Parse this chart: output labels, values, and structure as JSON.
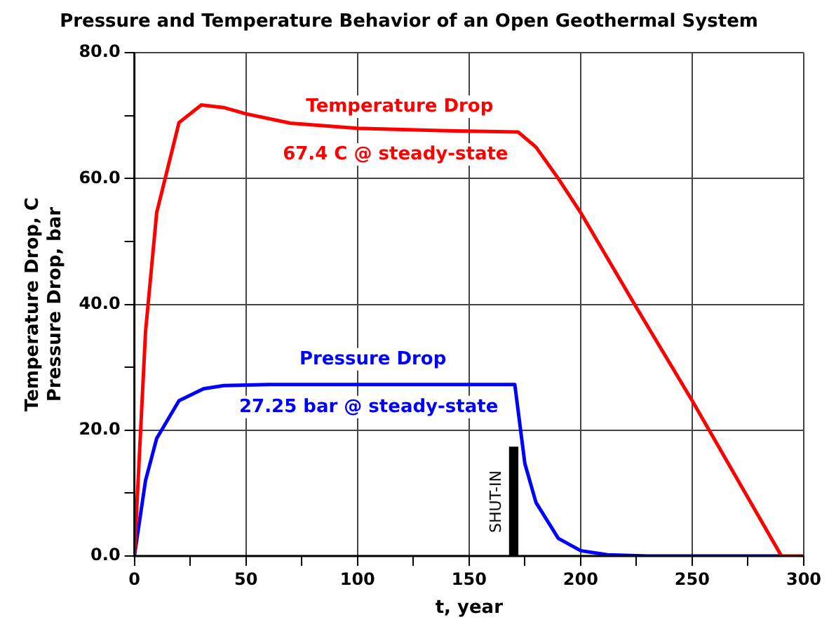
{
  "chart_data": {
    "type": "line",
    "title": "Pressure and Temperature Behavior of an Open Geothermal System",
    "xlabel": "t, year",
    "ylabel": "Temperature Drop, C\nPressure Drop, bar",
    "series": [
      {
        "name": "Temperature Drop",
        "color": "#ff0000",
        "x": [
          0,
          5,
          10,
          20,
          30,
          40,
          50,
          70,
          100,
          140,
          172,
          180,
          190,
          200,
          225,
          250,
          290,
          300
        ],
        "values": [
          0,
          35.7,
          54.6,
          68.9,
          71.7,
          71.3,
          70.3,
          68.8,
          68,
          67.6,
          67.4,
          65,
          60,
          54.6,
          39.5,
          24.7,
          0,
          0
        ]
      },
      {
        "name": "Pressure Drop",
        "color": "#0000ff",
        "x": [
          0,
          5,
          10,
          20,
          31,
          40,
          60,
          100,
          170.5,
          175,
          180,
          190,
          200,
          212,
          230,
          290
        ],
        "values": [
          0,
          12,
          18.7,
          24.7,
          26.6,
          27.1,
          27.25,
          27.25,
          27.25,
          14.7,
          8.5,
          2.8,
          0.85,
          0.2,
          0,
          0
        ]
      },
      {
        "name": "SHUT-IN",
        "type": "bar",
        "color": "#000000",
        "x": [
          170
        ],
        "values": [
          17.3
        ]
      }
    ],
    "annotations": [
      {
        "text": "67.4 C @ steady-state",
        "x": 117,
        "y": 67.4
      },
      {
        "text": "27.25 bar @ steady-state",
        "x": 105,
        "y": 27.25
      }
    ],
    "xlim": [
      0,
      300
    ],
    "xticks": [
      0,
      {
        "value": 25,
        "label": null
      },
      50,
      {
        "value": 75,
        "label": null
      },
      100,
      {
        "value": 125,
        "label": null
      },
      150,
      {
        "value": 175,
        "label": null
      },
      200,
      {
        "value": 225,
        "label": null
      },
      250,
      {
        "value": 275,
        "label": null
      },
      300
    ],
    "ylim": [
      0,
      80
    ],
    "yticks": [
      {
        "value": 0,
        "label": "0.0"
      },
      {
        "value": 10,
        "label": null
      },
      {
        "value": 20,
        "label": "20.0"
      },
      {
        "value": 30,
        "label": null
      },
      {
        "value": 40,
        "label": "40.0"
      },
      {
        "value": 50,
        "label": null
      },
      {
        "value": 60,
        "label": "60.0"
      },
      {
        "value": 70,
        "label": null
      },
      {
        "value": 80,
        "label": "80.0"
      }
    ],
    "grid": true,
    "legend": false,
    "marker": "none",
    "line_style": "solid"
  }
}
